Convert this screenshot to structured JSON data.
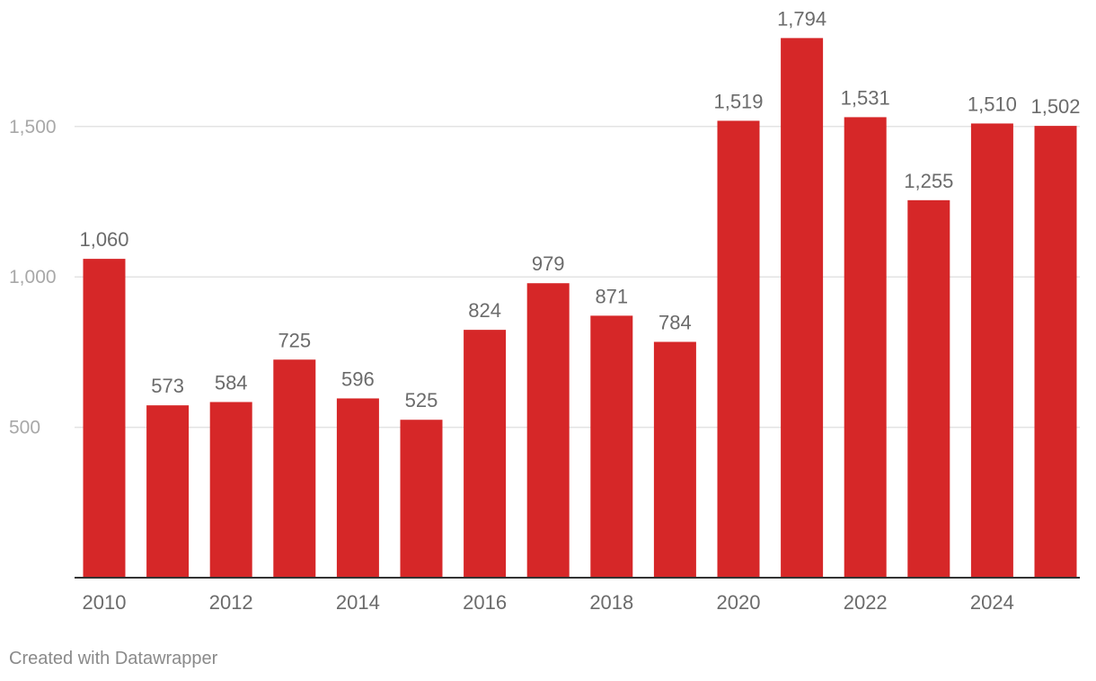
{
  "colors": {
    "bar": "#d62728",
    "gridline": "#e3e3e3",
    "baseline": "#333333",
    "tick_text": "#a8a8a8",
    "label_text": "#6b6b6b"
  },
  "chart_data": {
    "type": "bar",
    "categories": [
      "2010",
      "2011",
      "2012",
      "2013",
      "2014",
      "2015",
      "2016",
      "2017",
      "2018",
      "2019",
      "2020",
      "2021",
      "2022",
      "2023",
      "2024",
      "2025"
    ],
    "values": [
      1060,
      573,
      584,
      725,
      596,
      525,
      824,
      979,
      871,
      784,
      1519,
      1794,
      1531,
      1255,
      1510,
      1502
    ],
    "data_labels": [
      "1,060",
      "573",
      "584",
      "725",
      "596",
      "525",
      "824",
      "979",
      "871",
      "784",
      "1,519",
      "1,794",
      "1,531",
      "1,255",
      "1,510",
      "1,502"
    ],
    "x_tick_labels": [
      "2010",
      "2012",
      "2014",
      "2016",
      "2018",
      "2020",
      "2022",
      "2024"
    ],
    "y_ticks": [
      500,
      1000,
      1500
    ],
    "y_tick_labels": [
      "500",
      "1,000",
      "1,500"
    ],
    "ylim": [
      0,
      1800
    ],
    "grid": true
  },
  "footer": {
    "credit": "Created with Datawrapper"
  }
}
